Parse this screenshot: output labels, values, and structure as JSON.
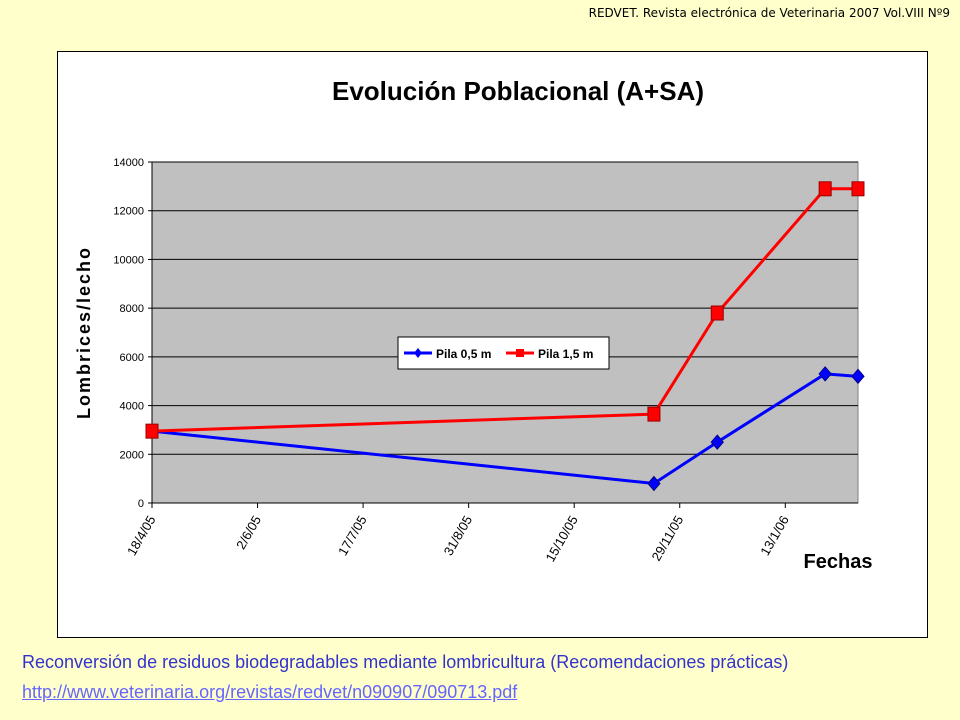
{
  "header": {
    "journal": "REDVET. Revista electrónica de Veterinaria 2007 Vol.VIII Nº9"
  },
  "footer": {
    "caption": "Reconversión de residuos biodegradables mediante lombricultura (Recomendaciones prácticas)",
    "url": "http://www.veterinaria.org/revistas/redvet/n090907/090713.pdf"
  },
  "chart_data": {
    "type": "line",
    "title": "Evolución Poblacional (A+SA)",
    "xlabel": "Fechas",
    "ylabel": "Lombrices/lecho",
    "x_tick_labels": [
      "18/4/05",
      "2/6/05",
      "17/7/05",
      "31/8/05",
      "15/10/05",
      "29/11/05",
      "13/1/06"
    ],
    "x_range": [
      "18/4/05",
      "13/2/06"
    ],
    "ylim": [
      0,
      14000
    ],
    "yticks": [
      0,
      2000,
      4000,
      6000,
      8000,
      10000,
      12000,
      14000
    ],
    "plot_background": "#c0c0c0",
    "grid": true,
    "legend_position": "center",
    "series": [
      {
        "name": "Pila 0,5 m",
        "color": "#0000ff",
        "marker": "diamond",
        "points": [
          {
            "x": "18/4/05",
            "y": 2950
          },
          {
            "x": "18/11/05",
            "y": 800
          },
          {
            "x": "15/12/05",
            "y": 2500
          },
          {
            "x": "30/1/06",
            "y": 5300
          },
          {
            "x": "13/2/06",
            "y": 5200
          }
        ]
      },
      {
        "name": "Pila 1,5 m",
        "color": "#ff0000",
        "marker": "square",
        "points": [
          {
            "x": "18/4/05",
            "y": 2950
          },
          {
            "x": "18/11/05",
            "y": 3650
          },
          {
            "x": "15/12/05",
            "y": 7800
          },
          {
            "x": "30/1/06",
            "y": 12900
          },
          {
            "x": "13/2/06",
            "y": 12900
          }
        ]
      }
    ]
  }
}
